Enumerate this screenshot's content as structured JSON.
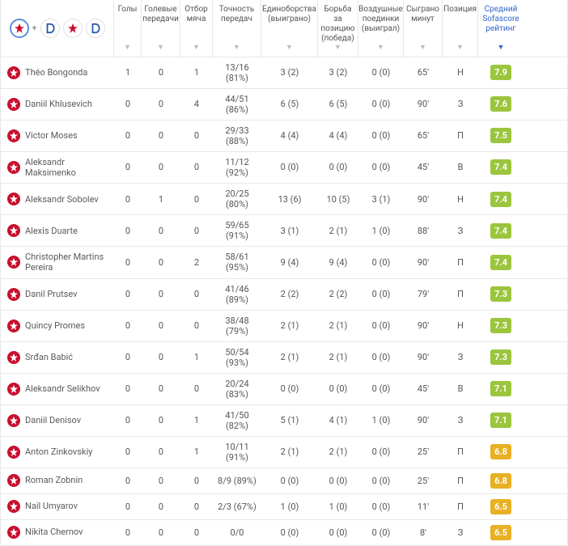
{
  "headers": {
    "goals": "Голы",
    "assists": "Голевые\nпередачи",
    "tackles": "Отбор\nмяча",
    "pass_acc": "Точность\nпередач",
    "duels": "Единоборства\n(выиграно)",
    "pos_duels": "Борьба за\nпозицию\n(победа)",
    "aerial": "Воздушные\nпоединки\n(выиграл)",
    "minutes": "Сыграно\nминут",
    "position": "Позиция",
    "rating": "Средний\nSofascore\nрейтинг"
  },
  "players": [
    {
      "name": "Théo Bongonda",
      "goals": "1",
      "assists": "0",
      "tackles": "1",
      "pass": "13/16 (81%)",
      "duels": "3 (2)",
      "pos": "3 (2)",
      "aerial": "0 (0)",
      "min": "65'",
      "p": "Н",
      "rating": "7.9",
      "rc": "rating-green"
    },
    {
      "name": "Daniil Khlusevich",
      "goals": "0",
      "assists": "0",
      "tackles": "4",
      "pass": "44/51 (86%)",
      "duels": "6 (5)",
      "pos": "6 (5)",
      "aerial": "0 (0)",
      "min": "90'",
      "p": "З",
      "rating": "7.6",
      "rc": "rating-green"
    },
    {
      "name": "Victor Moses",
      "goals": "0",
      "assists": "0",
      "tackles": "0",
      "pass": "29/33 (88%)",
      "duels": "4 (4)",
      "pos": "4 (4)",
      "aerial": "0 (0)",
      "min": "65'",
      "p": "П",
      "rating": "7.5",
      "rc": "rating-green"
    },
    {
      "name": "Aleksandr Maksimenko",
      "goals": "0",
      "assists": "0",
      "tackles": "0",
      "pass": "11/12 (92%)",
      "duels": "0 (0)",
      "pos": "0 (0)",
      "aerial": "0 (0)",
      "min": "45'",
      "p": "В",
      "rating": "7.4",
      "rc": "rating-green"
    },
    {
      "name": "Aleksandr Sobolev",
      "goals": "0",
      "assists": "1",
      "tackles": "0",
      "pass": "20/25 (80%)",
      "duels": "13 (6)",
      "pos": "10 (5)",
      "aerial": "3 (1)",
      "min": "90'",
      "p": "Н",
      "rating": "7.4",
      "rc": "rating-green"
    },
    {
      "name": "Alexis Duarte",
      "goals": "0",
      "assists": "0",
      "tackles": "0",
      "pass": "59/65 (91%)",
      "duels": "3 (1)",
      "pos": "2 (1)",
      "aerial": "1 (0)",
      "min": "88'",
      "p": "З",
      "rating": "7.4",
      "rc": "rating-green"
    },
    {
      "name": "Christopher Martins Pereira",
      "goals": "0",
      "assists": "0",
      "tackles": "2",
      "pass": "58/61 (95%)",
      "duels": "9 (4)",
      "pos": "9 (4)",
      "aerial": "0 (0)",
      "min": "90'",
      "p": "П",
      "rating": "7.4",
      "rc": "rating-green"
    },
    {
      "name": "Danil Prutsev",
      "goals": "0",
      "assists": "0",
      "tackles": "0",
      "pass": "41/46 (89%)",
      "duels": "2 (2)",
      "pos": "2 (2)",
      "aerial": "0 (0)",
      "min": "79'",
      "p": "П",
      "rating": "7.3",
      "rc": "rating-green"
    },
    {
      "name": "Quincy Promes",
      "goals": "0",
      "assists": "0",
      "tackles": "0",
      "pass": "38/48 (79%)",
      "duels": "2 (1)",
      "pos": "2 (1)",
      "aerial": "0 (0)",
      "min": "90'",
      "p": "Н",
      "rating": "7.3",
      "rc": "rating-green"
    },
    {
      "name": "Srđan Babić",
      "goals": "0",
      "assists": "0",
      "tackles": "1",
      "pass": "50/54 (93%)",
      "duels": "2 (1)",
      "pos": "2 (1)",
      "aerial": "0 (0)",
      "min": "90'",
      "p": "З",
      "rating": "7.3",
      "rc": "rating-green"
    },
    {
      "name": "Aleksandr Selikhov",
      "goals": "0",
      "assists": "0",
      "tackles": "0",
      "pass": "20/24 (83%)",
      "duels": "0 (0)",
      "pos": "0 (0)",
      "aerial": "0 (0)",
      "min": "45'",
      "p": "В",
      "rating": "7.1",
      "rc": "rating-green"
    },
    {
      "name": "Daniil Denisov",
      "goals": "0",
      "assists": "0",
      "tackles": "1",
      "pass": "41/50 (82%)",
      "duels": "5 (1)",
      "pos": "4 (1)",
      "aerial": "1 (0)",
      "min": "90'",
      "p": "З",
      "rating": "7.1",
      "rc": "rating-green"
    },
    {
      "name": "Anton Zinkovskiy",
      "goals": "0",
      "assists": "0",
      "tackles": "1",
      "pass": "10/11 (91%)",
      "duels": "2 (1)",
      "pos": "2 (1)",
      "aerial": "0 (0)",
      "min": "25'",
      "p": "П",
      "rating": "6.8",
      "rc": "rating-yellow"
    },
    {
      "name": "Roman Zobnin",
      "goals": "0",
      "assists": "0",
      "tackles": "0",
      "pass": "8/9 (89%)",
      "duels": "0 (0)",
      "pos": "0 (0)",
      "aerial": "0 (0)",
      "min": "25'",
      "p": "П",
      "rating": "6.8",
      "rc": "rating-yellow"
    },
    {
      "name": "Nail Umyarov",
      "goals": "0",
      "assists": "0",
      "tackles": "0",
      "pass": "2/3 (67%)",
      "duels": "1 (0)",
      "pos": "1 (0)",
      "aerial": "0 (0)",
      "min": "11'",
      "p": "П",
      "rating": "6.5",
      "rc": "rating-yellow"
    },
    {
      "name": "Nikita Chernov",
      "goals": "0",
      "assists": "0",
      "tackles": "0",
      "pass": "0/0",
      "duels": "0 (0)",
      "pos": "0 (0)",
      "aerial": "0 (0)",
      "min": "8'",
      "p": "З",
      "rating": "6.5",
      "rc": "rating-yellow"
    }
  ]
}
